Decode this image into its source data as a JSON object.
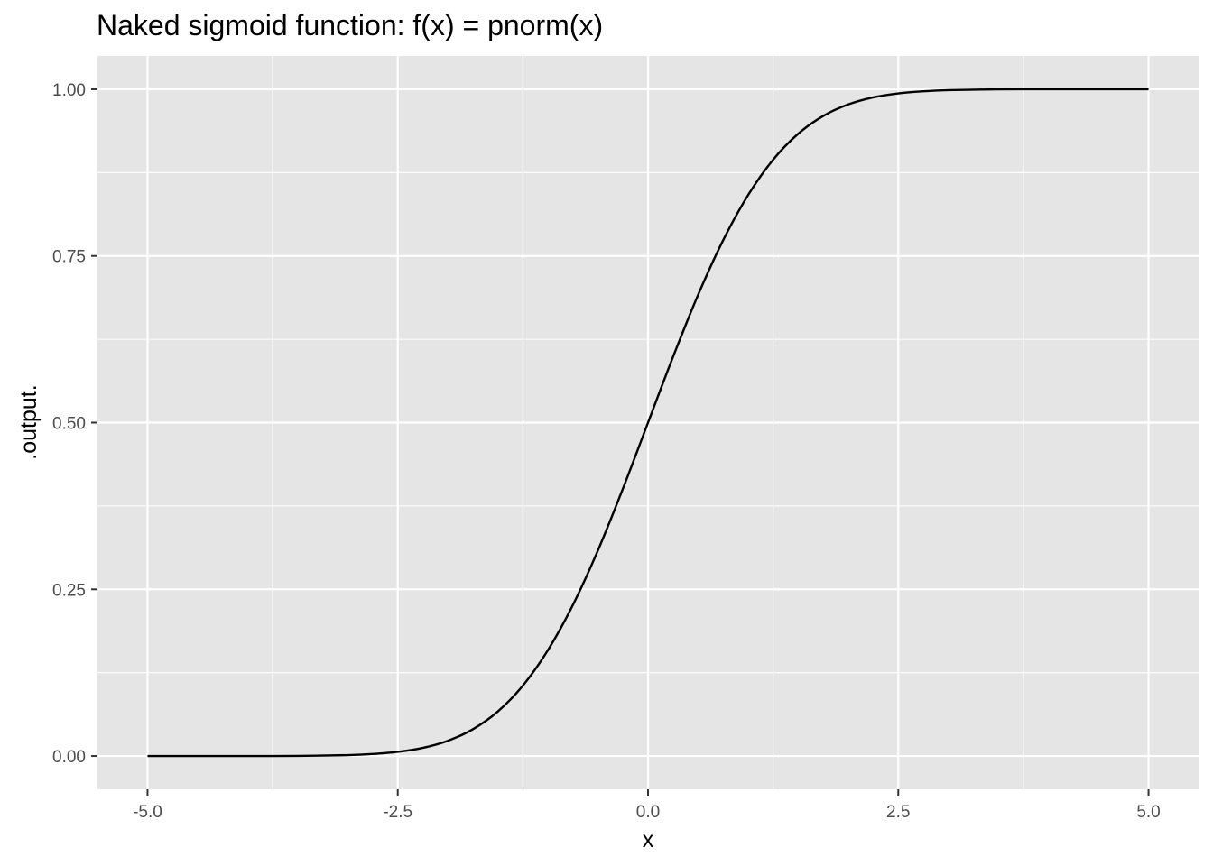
{
  "chart_data": {
    "type": "line",
    "title": "Naked sigmoid function:  f(x) = pnorm(x)",
    "xlabel": "x",
    "ylabel": ".output.",
    "xlim": [
      -5.5,
      5.5
    ],
    "ylim": [
      -0.05,
      1.05
    ],
    "x_ticks": [
      -5.0,
      -2.5,
      0.0,
      2.5,
      5.0
    ],
    "x_tick_labels": [
      "-5.0",
      "-2.5",
      "0.0",
      "2.5",
      "5.0"
    ],
    "x_minor": [
      -3.75,
      -1.25,
      1.25,
      3.75
    ],
    "y_ticks": [
      0.0,
      0.25,
      0.5,
      0.75,
      1.0
    ],
    "y_tick_labels": [
      "0.00",
      "0.25",
      "0.50",
      "0.75",
      "1.00"
    ],
    "y_minor": [
      0.125,
      0.375,
      0.625,
      0.875
    ],
    "grid": true,
    "series": [
      {
        "name": "pnorm(x)",
        "color": "#000000",
        "x": [
          -5.0,
          -4.5,
          -4.0,
          -3.5,
          -3.0,
          -2.75,
          -2.5,
          -2.25,
          -2.0,
          -1.75,
          -1.5,
          -1.25,
          -1.0,
          -0.75,
          -0.5,
          -0.25,
          0.0,
          0.25,
          0.5,
          0.75,
          1.0,
          1.25,
          1.5,
          1.75,
          2.0,
          2.25,
          2.5,
          2.75,
          3.0,
          3.5,
          4.0,
          4.5,
          5.0
        ],
        "values": [
          0.0,
          0.0,
          0.0,
          0.0002,
          0.0013,
          0.003,
          0.0062,
          0.0122,
          0.0228,
          0.0401,
          0.0668,
          0.1056,
          0.1587,
          0.2266,
          0.3085,
          0.4013,
          0.5,
          0.5987,
          0.6915,
          0.7734,
          0.8413,
          0.8944,
          0.9332,
          0.9599,
          0.9772,
          0.9878,
          0.9938,
          0.997,
          0.9987,
          0.9998,
          1.0,
          1.0,
          1.0
        ]
      }
    ]
  },
  "colors": {
    "panel": "#e5e5e5",
    "grid": "#ffffff",
    "tick_text": "#4d4d4d",
    "line": "#000000"
  }
}
